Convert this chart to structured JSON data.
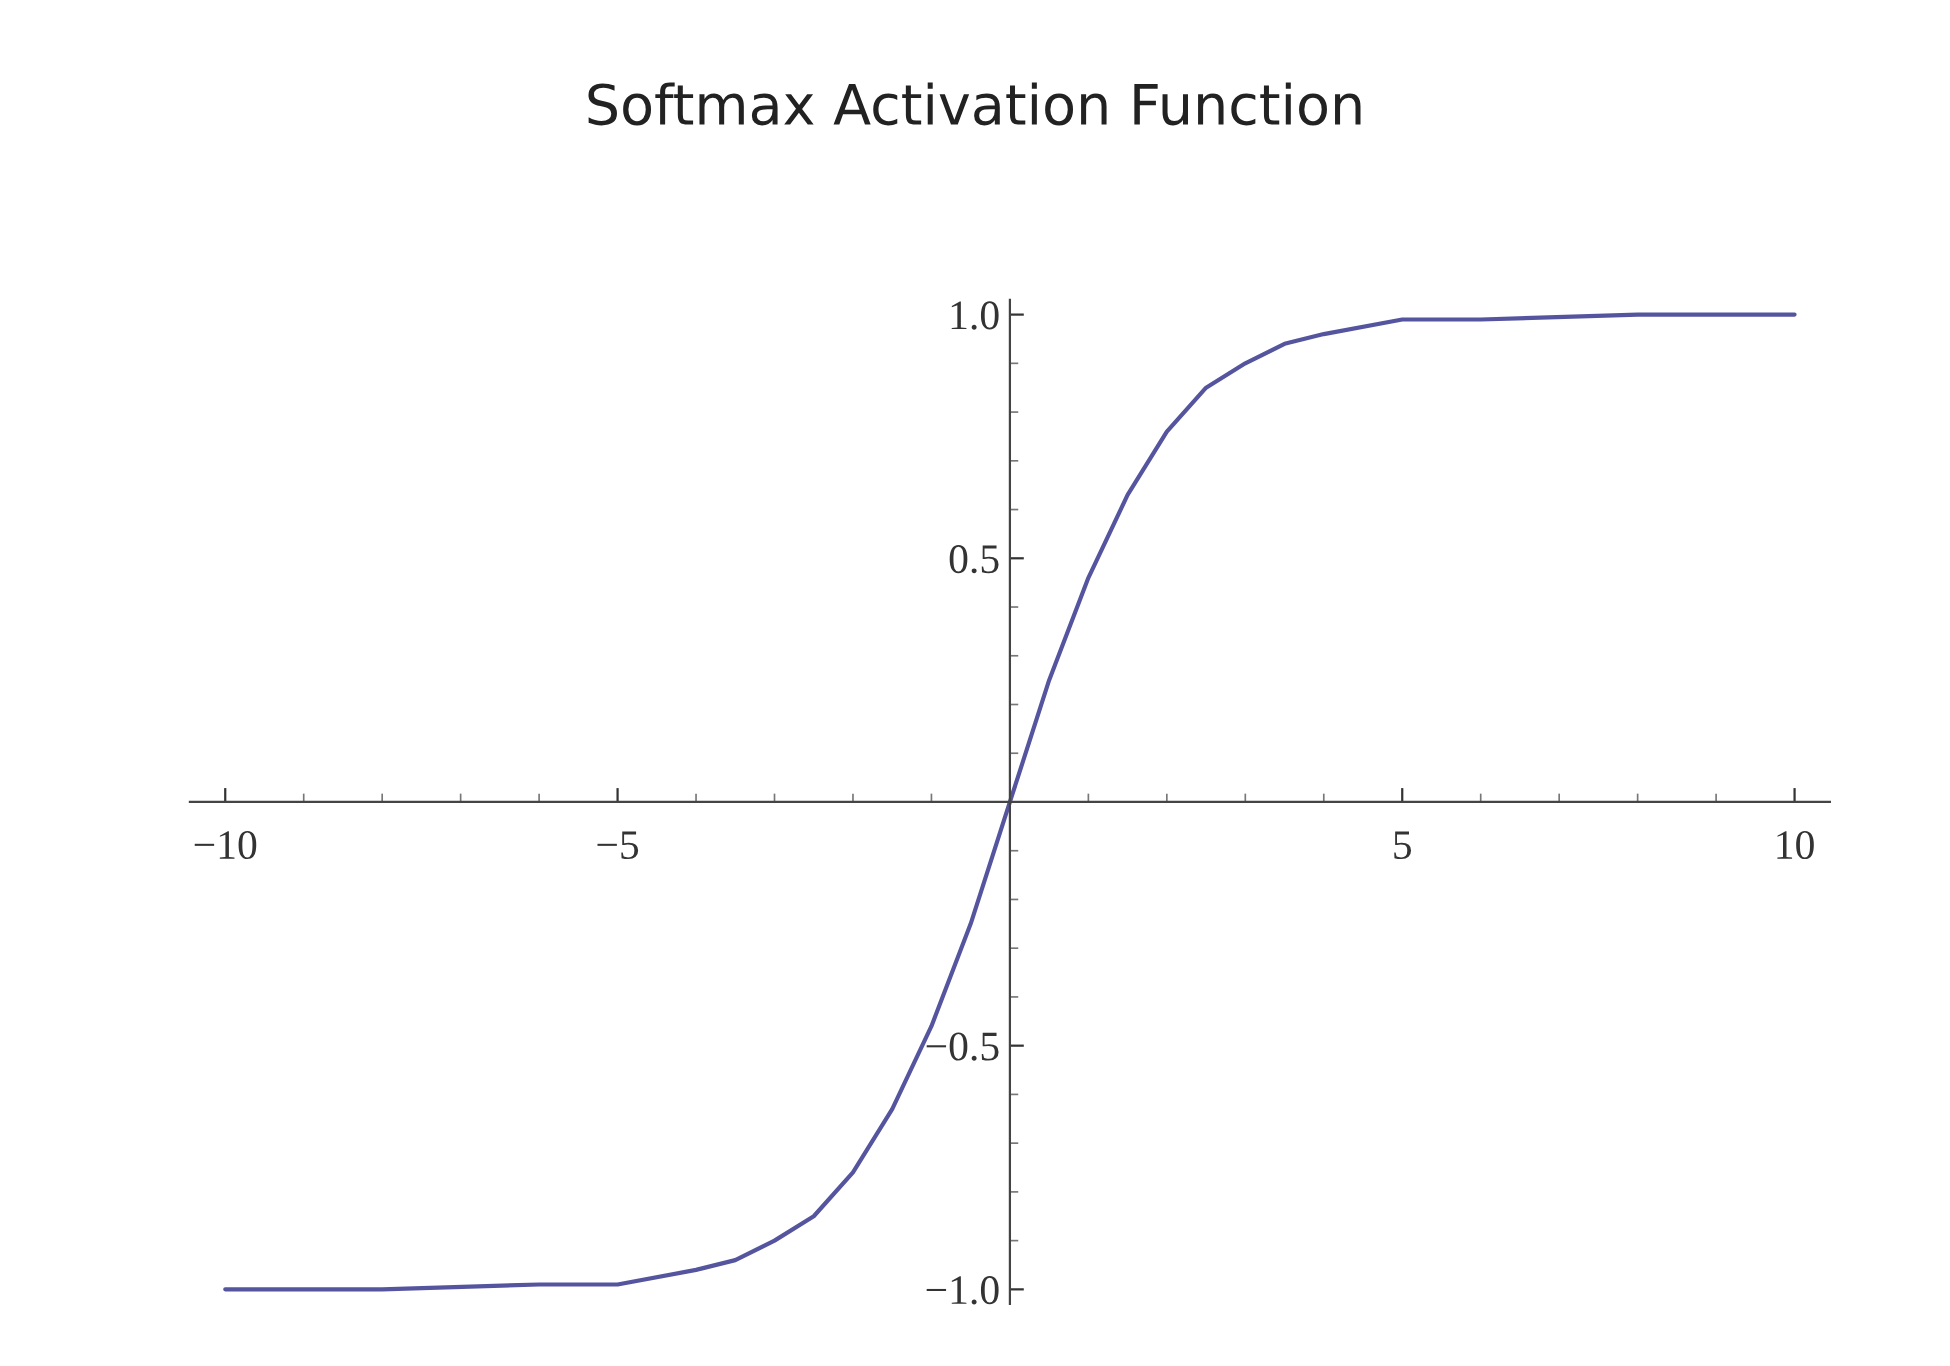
{
  "chart_data": {
    "type": "line",
    "title": "Softmax Activation Function",
    "x": [
      -10,
      -8,
      -6,
      -5,
      -4,
      -3.5,
      -3,
      -2.5,
      -2,
      -1.5,
      -1,
      -0.5,
      0,
      0.5,
      1,
      1.5,
      2,
      2.5,
      3,
      3.5,
      4,
      5,
      6,
      8,
      10
    ],
    "series": [
      {
        "color": "#55559f",
        "values": [
          -1.0,
          -1.0,
          -0.99,
          -0.99,
          -0.96,
          -0.94,
          -0.9,
          -0.85,
          -0.76,
          -0.63,
          -0.46,
          -0.25,
          0,
          0.25,
          0.46,
          0.63,
          0.76,
          0.85,
          0.9,
          0.94,
          0.96,
          0.99,
          0.99,
          1.0,
          1.0
        ]
      }
    ],
    "xlim": [
      -10.45,
      10.45
    ],
    "ylim": [
      -1.03,
      1.03
    ],
    "xticks": [
      {
        "value": -10,
        "label": "−10"
      },
      {
        "value": -5,
        "label": "−5"
      },
      5,
      10
    ],
    "yticks": [
      {
        "value": -1.0,
        "label": "−1.0"
      },
      {
        "value": -0.5,
        "label": "−0.5"
      },
      {
        "value": 0.5,
        "label": "0.5"
      },
      {
        "value": 1.0,
        "label": "1.0"
      }
    ],
    "grid": false,
    "legend": false
  }
}
